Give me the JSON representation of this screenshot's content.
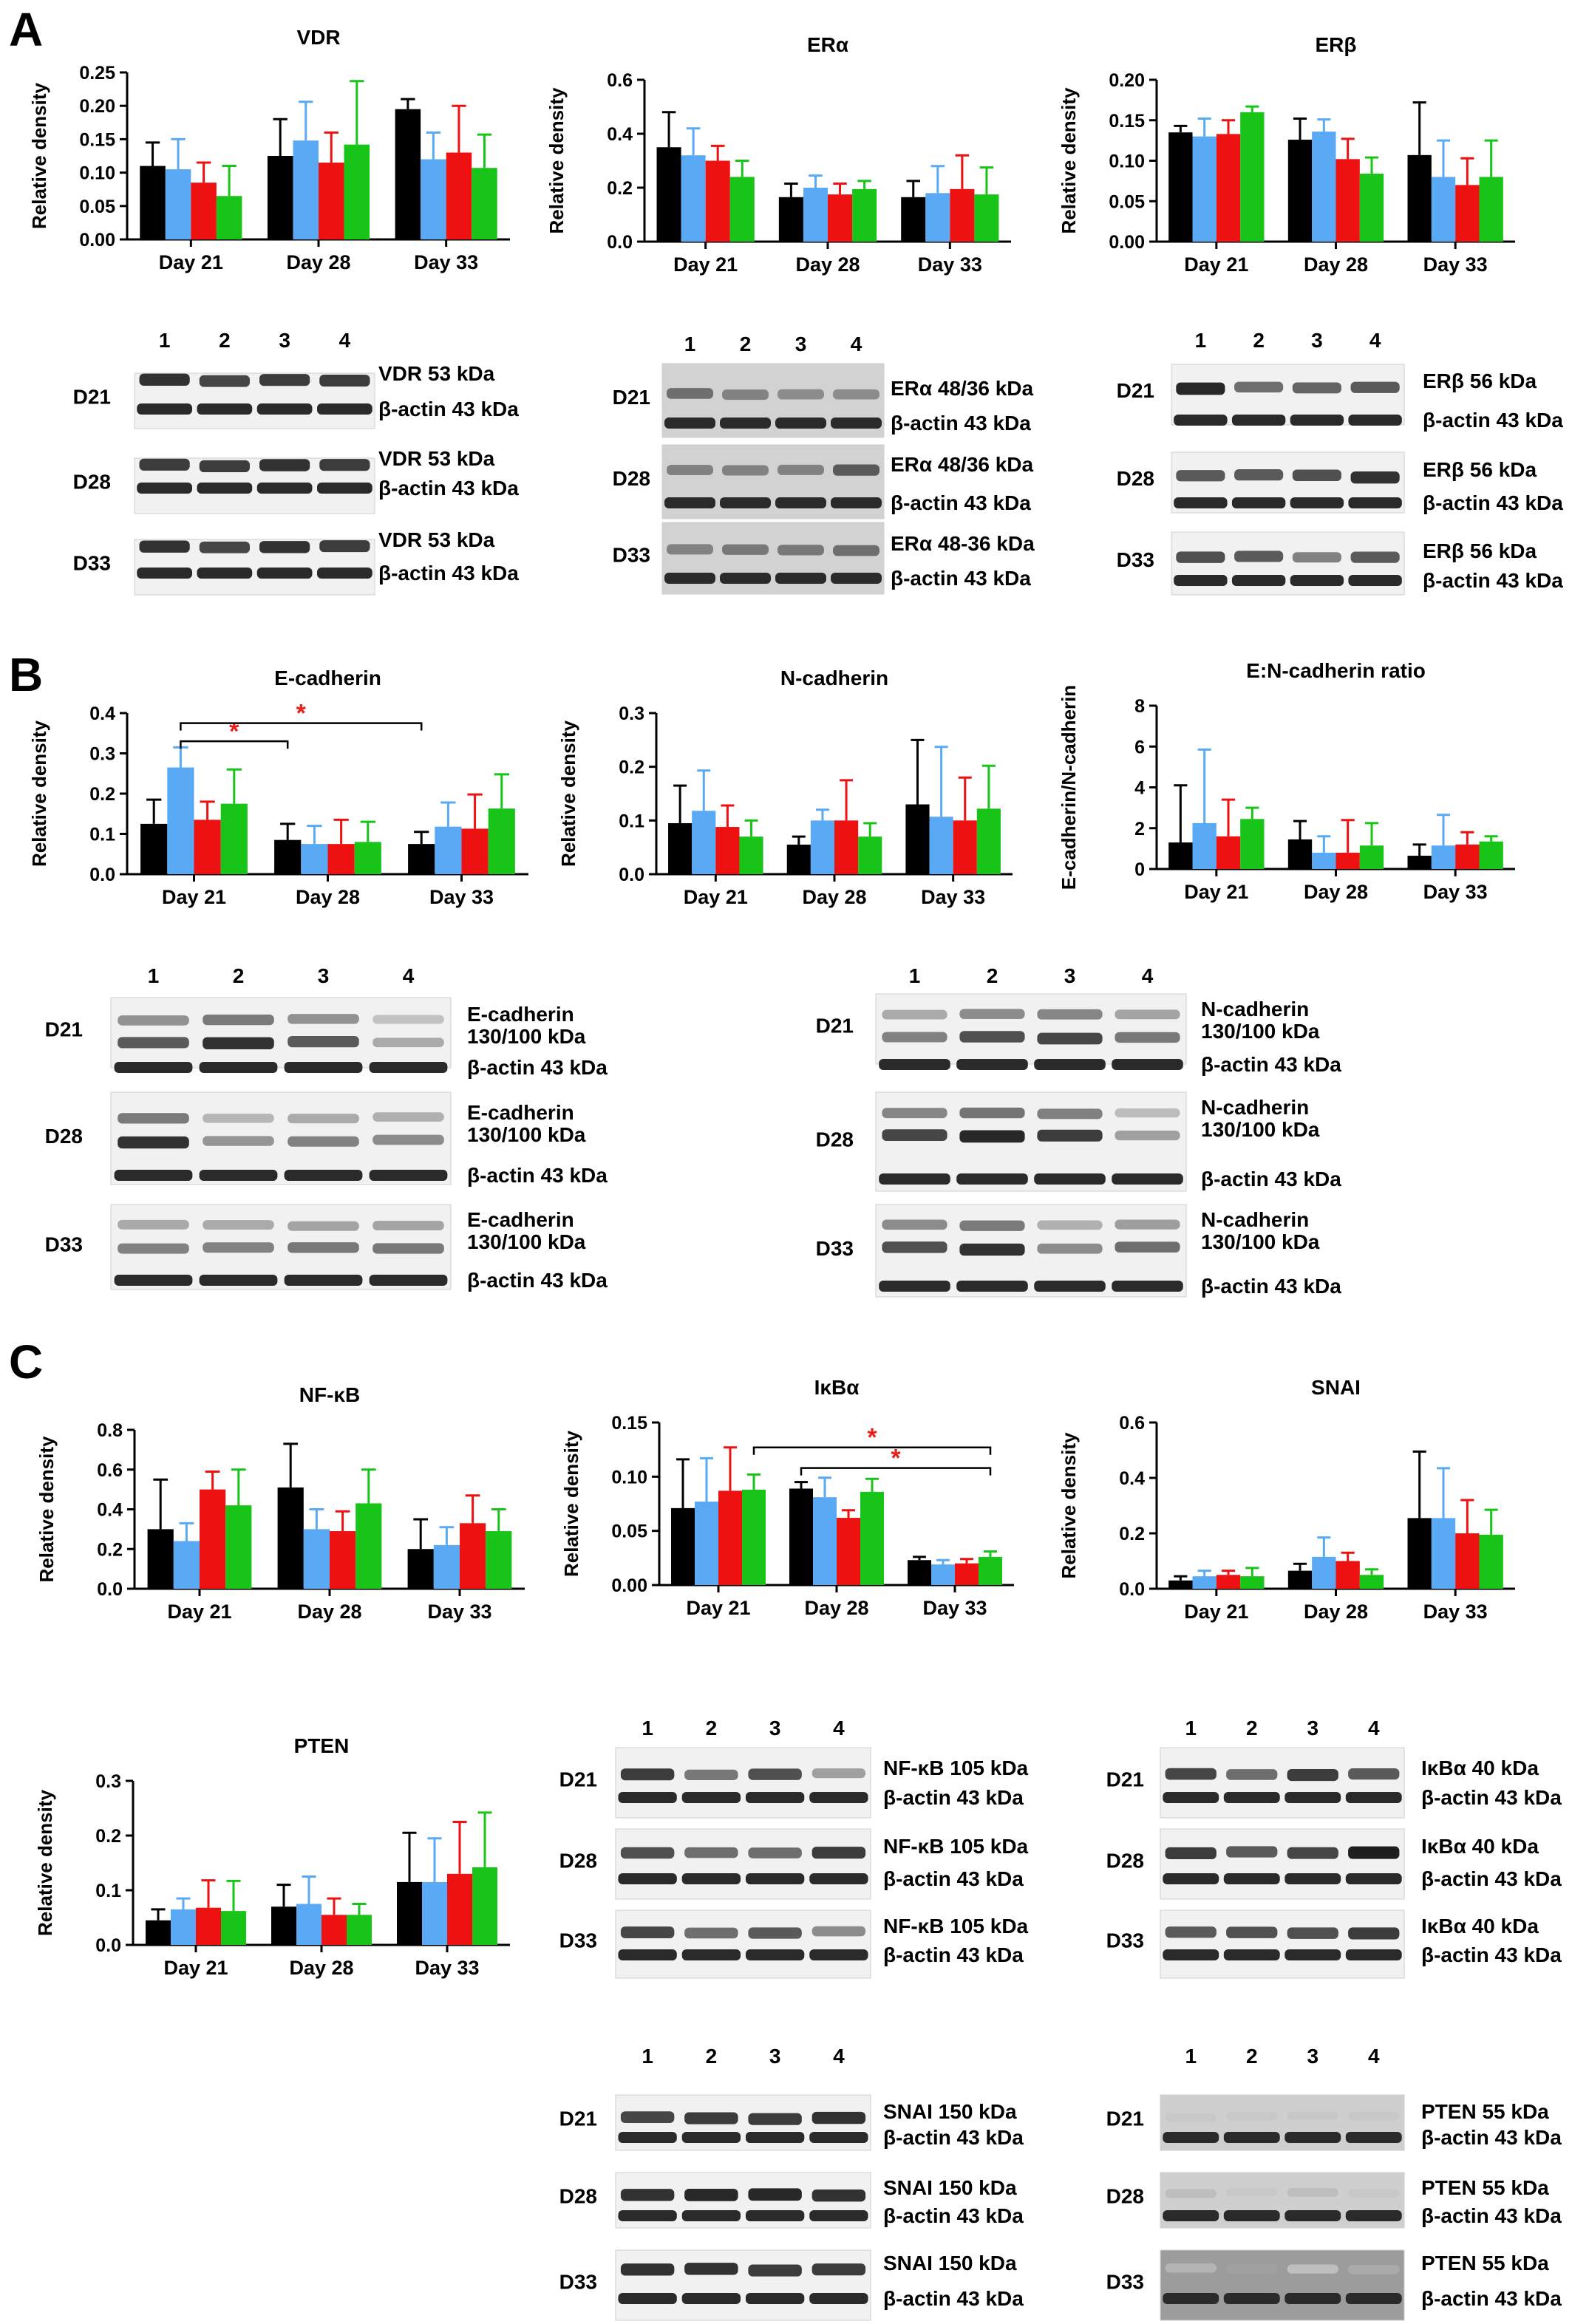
{
  "colors": {
    "s1": "#000000",
    "s2": "#5aa9f4",
    "s3": "#ee1111",
    "s4": "#19c419",
    "axis": "#000000",
    "sig": "#e8201c"
  },
  "panels": [
    {
      "label": "A"
    },
    {
      "label": "B"
    },
    {
      "label": "C"
    }
  ],
  "chart_data": [
    {
      "type": "bar",
      "title": "VDR",
      "ylabel": "Relative density",
      "categories": [
        "Day 21",
        "Day 28",
        "Day 33"
      ],
      "ylim": [
        0,
        0.25
      ],
      "yticks": [
        "0.00",
        "0.05",
        "0.10",
        "0.15",
        "0.20",
        "0.25"
      ],
      "series": [
        {
          "values": [
            0.11,
            0.125,
            0.195
          ],
          "err": [
            0.035,
            0.055,
            0.015
          ]
        },
        {
          "values": [
            0.105,
            0.148,
            0.12
          ],
          "err": [
            0.045,
            0.058,
            0.04
          ]
        },
        {
          "values": [
            0.085,
            0.115,
            0.13
          ],
          "err": [
            0.03,
            0.045,
            0.07
          ]
        },
        {
          "values": [
            0.065,
            0.142,
            0.107
          ],
          "err": [
            0.045,
            0.095,
            0.05
          ]
        }
      ],
      "sig": []
    },
    {
      "type": "bar",
      "title": "ERα",
      "ylabel": "Relative density",
      "categories": [
        "Day 21",
        "Day 28",
        "Day 33"
      ],
      "ylim": [
        0,
        0.6
      ],
      "yticks": [
        "0.0",
        "0.2",
        "0.4",
        "0.6"
      ],
      "series": [
        {
          "values": [
            0.35,
            0.165,
            0.165
          ],
          "err": [
            0.13,
            0.05,
            0.06
          ]
        },
        {
          "values": [
            0.32,
            0.2,
            0.18
          ],
          "err": [
            0.1,
            0.045,
            0.1
          ]
        },
        {
          "values": [
            0.3,
            0.175,
            0.195
          ],
          "err": [
            0.055,
            0.04,
            0.125
          ]
        },
        {
          "values": [
            0.24,
            0.195,
            0.175
          ],
          "err": [
            0.06,
            0.03,
            0.1
          ]
        }
      ],
      "sig": []
    },
    {
      "type": "bar",
      "title": "ERβ",
      "ylabel": "Relative density",
      "categories": [
        "Day 21",
        "Day 28",
        "Day 33"
      ],
      "ylim": [
        0,
        0.2
      ],
      "yticks": [
        "0.00",
        "0.05",
        "0.10",
        "0.15",
        "0.20"
      ],
      "series": [
        {
          "values": [
            0.135,
            0.126,
            0.107
          ],
          "err": [
            0.008,
            0.026,
            0.065
          ]
        },
        {
          "values": [
            0.13,
            0.136,
            0.08
          ],
          "err": [
            0.022,
            0.015,
            0.045
          ]
        },
        {
          "values": [
            0.133,
            0.102,
            0.07
          ],
          "err": [
            0.017,
            0.025,
            0.033
          ]
        },
        {
          "values": [
            0.16,
            0.084,
            0.08
          ],
          "err": [
            0.007,
            0.02,
            0.045
          ]
        }
      ],
      "sig": []
    },
    {
      "type": "bar",
      "title": "E-cadherin",
      "ylabel": "Relative density",
      "categories": [
        "Day 21",
        "Day 28",
        "Day 33"
      ],
      "ylim": [
        0,
        0.4
      ],
      "yticks": [
        "0.0",
        "0.1",
        "0.2",
        "0.3",
        "0.4"
      ],
      "series": [
        {
          "values": [
            0.125,
            0.085,
            0.075
          ],
          "err": [
            0.06,
            0.04,
            0.03
          ]
        },
        {
          "values": [
            0.265,
            0.075,
            0.118
          ],
          "err": [
            0.05,
            0.045,
            0.06
          ]
        },
        {
          "values": [
            0.135,
            0.075,
            0.113
          ],
          "err": [
            0.045,
            0.06,
            0.085
          ]
        },
        {
          "values": [
            0.175,
            0.08,
            0.163
          ],
          "err": [
            0.085,
            0.05,
            0.085
          ]
        }
      ],
      "sig": [
        {
          "from": [
            0,
            1
          ],
          "to": [
            1,
            0
          ],
          "y": 0.33,
          "label": "*"
        },
        {
          "from": [
            0,
            1
          ],
          "to": [
            2,
            0
          ],
          "y": 0.375,
          "label": "*"
        }
      ]
    },
    {
      "type": "bar",
      "title": "N-cadherin",
      "ylabel": "Relative density",
      "categories": [
        "Day 21",
        "Day 28",
        "Day 33"
      ],
      "ylim": [
        0,
        0.3
      ],
      "yticks": [
        "0.0",
        "0.1",
        "0.2",
        "0.3"
      ],
      "series": [
        {
          "values": [
            0.095,
            0.055,
            0.13
          ],
          "err": [
            0.07,
            0.015,
            0.12
          ]
        },
        {
          "values": [
            0.118,
            0.1,
            0.107
          ],
          "err": [
            0.075,
            0.02,
            0.13
          ]
        },
        {
          "values": [
            0.088,
            0.1,
            0.1
          ],
          "err": [
            0.04,
            0.075,
            0.08
          ]
        },
        {
          "values": [
            0.07,
            0.07,
            0.122
          ],
          "err": [
            0.03,
            0.025,
            0.08
          ]
        }
      ],
      "sig": []
    },
    {
      "type": "bar",
      "title": "E:N-cadherin ratio",
      "ylabel": "E-cadherin/N-cadherin",
      "categories": [
        "Day 21",
        "Day 28",
        "Day 33"
      ],
      "ylim": [
        0,
        8
      ],
      "yticks": [
        "0",
        "2",
        "4",
        "6",
        "8"
      ],
      "series": [
        {
          "values": [
            1.3,
            1.45,
            0.65
          ],
          "err": [
            2.8,
            0.9,
            0.55
          ]
        },
        {
          "values": [
            2.25,
            0.8,
            1.15
          ],
          "err": [
            3.6,
            0.8,
            1.5
          ]
        },
        {
          "values": [
            1.6,
            0.8,
            1.2
          ],
          "err": [
            1.8,
            1.6,
            0.6
          ]
        },
        {
          "values": [
            2.45,
            1.15,
            1.35
          ],
          "err": [
            0.55,
            1.1,
            0.25
          ]
        }
      ],
      "sig": []
    },
    {
      "type": "bar",
      "title": "NF-κB",
      "ylabel": "Relative density",
      "categories": [
        "Day 21",
        "Day 28",
        "Day 33"
      ],
      "ylim": [
        0,
        0.8
      ],
      "yticks": [
        "0.0",
        "0.2",
        "0.4",
        "0.6",
        "0.8"
      ],
      "series": [
        {
          "values": [
            0.3,
            0.51,
            0.2
          ],
          "err": [
            0.25,
            0.22,
            0.15
          ]
        },
        {
          "values": [
            0.24,
            0.3,
            0.22
          ],
          "err": [
            0.09,
            0.1,
            0.09
          ]
        },
        {
          "values": [
            0.5,
            0.29,
            0.33
          ],
          "err": [
            0.09,
            0.1,
            0.14
          ]
        },
        {
          "values": [
            0.42,
            0.43,
            0.29
          ],
          "err": [
            0.18,
            0.17,
            0.11
          ]
        }
      ],
      "sig": []
    },
    {
      "type": "bar",
      "title": "IκBα",
      "ylabel": "Relative density",
      "categories": [
        "Day 21",
        "Day 28",
        "Day 33"
      ],
      "ylim": [
        0,
        0.15
      ],
      "yticks": [
        "0.00",
        "0.05",
        "0.10",
        "0.15"
      ],
      "series": [
        {
          "values": [
            0.071,
            0.089,
            0.023
          ],
          "err": [
            0.045,
            0.006,
            0.003
          ]
        },
        {
          "values": [
            0.077,
            0.081,
            0.019
          ],
          "err": [
            0.04,
            0.018,
            0.004
          ]
        },
        {
          "values": [
            0.087,
            0.062,
            0.02
          ],
          "err": [
            0.04,
            0.007,
            0.004
          ]
        },
        {
          "values": [
            0.088,
            0.086,
            0.026
          ],
          "err": [
            0.014,
            0.012,
            0.005
          ]
        }
      ],
      "sig": [
        {
          "from": [
            1,
            0
          ],
          "to": [
            2,
            3
          ],
          "y": 0.108,
          "label": "*"
        },
        {
          "from": [
            0,
            3
          ],
          "to": [
            2,
            3
          ],
          "y": 0.127,
          "label": "*"
        }
      ]
    },
    {
      "type": "bar",
      "title": "SNAI",
      "ylabel": "Relative density",
      "categories": [
        "Day 21",
        "Day 28",
        "Day 33"
      ],
      "ylim": [
        0,
        0.6
      ],
      "yticks": [
        "0.0",
        "0.2",
        "0.4",
        "0.6"
      ],
      "series": [
        {
          "values": [
            0.03,
            0.065,
            0.255
          ],
          "err": [
            0.015,
            0.025,
            0.24
          ]
        },
        {
          "values": [
            0.045,
            0.115,
            0.255
          ],
          "err": [
            0.02,
            0.07,
            0.18
          ]
        },
        {
          "values": [
            0.05,
            0.1,
            0.2
          ],
          "err": [
            0.015,
            0.03,
            0.12
          ]
        },
        {
          "values": [
            0.045,
            0.05,
            0.195
          ],
          "err": [
            0.03,
            0.02,
            0.09
          ]
        }
      ],
      "sig": []
    },
    {
      "type": "bar",
      "title": "PTEN",
      "ylabel": "Relative density",
      "categories": [
        "Day 21",
        "Day 28",
        "Day 33"
      ],
      "ylim": [
        0,
        0.3
      ],
      "yticks": [
        "0.0",
        "0.1",
        "0.2",
        "0.3"
      ],
      "series": [
        {
          "values": [
            0.045,
            0.07,
            0.115
          ],
          "err": [
            0.02,
            0.04,
            0.09
          ]
        },
        {
          "values": [
            0.065,
            0.075,
            0.115
          ],
          "err": [
            0.02,
            0.05,
            0.08
          ]
        },
        {
          "values": [
            0.068,
            0.055,
            0.13
          ],
          "err": [
            0.05,
            0.03,
            0.095
          ]
        },
        {
          "values": [
            0.062,
            0.055,
            0.142
          ],
          "err": [
            0.055,
            0.02,
            0.1
          ]
        }
      ],
      "sig": []
    }
  ],
  "blots": [
    {
      "lanes": [
        "1",
        "2",
        "3",
        "4"
      ],
      "rows": [
        {
          "day": "D21",
          "labels": [
            "VDR 53 kDa",
            "β-actin 43 kDa"
          ]
        },
        {
          "day": "D28",
          "labels": [
            "VDR 53 kDa",
            "β-actin 43 kDa"
          ]
        },
        {
          "day": "D33",
          "labels": [
            "VDR 53 kDa",
            "β-actin 43 kDa"
          ]
        }
      ]
    },
    {
      "lanes": [
        "1",
        "2",
        "3",
        "4"
      ],
      "rows": [
        {
          "day": "D21",
          "labels": [
            "ERα 48/36 kDa",
            "β-actin 43 kDa"
          ]
        },
        {
          "day": "D28",
          "labels": [
            "ERα 48/36 kDa",
            "β-actin 43 kDa"
          ]
        },
        {
          "day": "D33",
          "labels": [
            "ERα 48-36 kDa",
            "β-actin 43 kDa"
          ]
        }
      ]
    },
    {
      "lanes": [
        "1",
        "2",
        "3",
        "4"
      ],
      "rows": [
        {
          "day": "D21",
          "labels": [
            "ERβ 56 kDa",
            "β-actin 43 kDa"
          ]
        },
        {
          "day": "D28",
          "labels": [
            "ERβ 56 kDa",
            "β-actin 43 kDa"
          ]
        },
        {
          "day": "D33",
          "labels": [
            "ERβ 56 kDa",
            "β-actin 43 kDa"
          ]
        }
      ]
    },
    {
      "lanes": [
        "1",
        "2",
        "3",
        "4"
      ],
      "rows": [
        {
          "day": "D21",
          "labels": [
            "E-cadherin",
            "130/100 kDa",
            "β-actin 43 kDa"
          ]
        },
        {
          "day": "D28",
          "labels": [
            "E-cadherin",
            "130/100 kDa",
            "β-actin 43 kDa"
          ]
        },
        {
          "day": "D33",
          "labels": [
            "E-cadherin",
            "130/100 kDa",
            "β-actin 43 kDa"
          ]
        }
      ]
    },
    {
      "lanes": [
        "1",
        "2",
        "3",
        "4"
      ],
      "rows": [
        {
          "day": "D21",
          "labels": [
            "N-cadherin",
            "130/100 kDa",
            "β-actin 43 kDa"
          ]
        },
        {
          "day": "D28",
          "labels": [
            "N-cadherin",
            "130/100 kDa",
            "β-actin 43 kDa"
          ]
        },
        {
          "day": "D33",
          "labels": [
            "N-cadherin",
            "130/100 kDa",
            "β-actin 43 kDa"
          ]
        }
      ]
    },
    {
      "lanes": [
        "1",
        "2",
        "3",
        "4"
      ],
      "rows": [
        {
          "day": "D21",
          "labels": [
            "NF-κB 105 kDa",
            "β-actin 43 kDa"
          ]
        },
        {
          "day": "D28",
          "labels": [
            "NF-κB 105 kDa",
            "β-actin 43 kDa"
          ]
        },
        {
          "day": "D33",
          "labels": [
            "NF-κB 105 kDa",
            "β-actin 43 kDa"
          ]
        }
      ]
    },
    {
      "lanes": [
        "1",
        "2",
        "3",
        "4"
      ],
      "rows": [
        {
          "day": "D21",
          "labels": [
            "IκBα 40 kDa",
            "β-actin 43 kDa"
          ]
        },
        {
          "day": "D28",
          "labels": [
            "IκBα 40 kDa",
            "β-actin 43 kDa"
          ]
        },
        {
          "day": "D33",
          "labels": [
            "IκBα 40 kDa",
            "β-actin 43 kDa"
          ]
        }
      ]
    },
    {
      "lanes": [
        "1",
        "2",
        "3",
        "4"
      ],
      "rows": [
        {
          "day": "D21",
          "labels": [
            "SNAI 150 kDa",
            "β-actin 43 kDa"
          ]
        },
        {
          "day": "D28",
          "labels": [
            "SNAI 150 kDa",
            "β-actin 43 kDa"
          ]
        },
        {
          "day": "D33",
          "labels": [
            "SNAI 150 kDa",
            "β-actin 43 kDa"
          ]
        }
      ]
    },
    {
      "lanes": [
        "1",
        "2",
        "3",
        "4"
      ],
      "rows": [
        {
          "day": "D21",
          "labels": [
            "PTEN 55 kDa",
            "β-actin 43 kDa"
          ]
        },
        {
          "day": "D28",
          "labels": [
            "PTEN 55 kDa",
            "β-actin 43 kDa"
          ]
        },
        {
          "day": "D33",
          "labels": [
            "PTEN 55 kDa",
            "β-actin 43 kDa"
          ]
        }
      ]
    }
  ]
}
